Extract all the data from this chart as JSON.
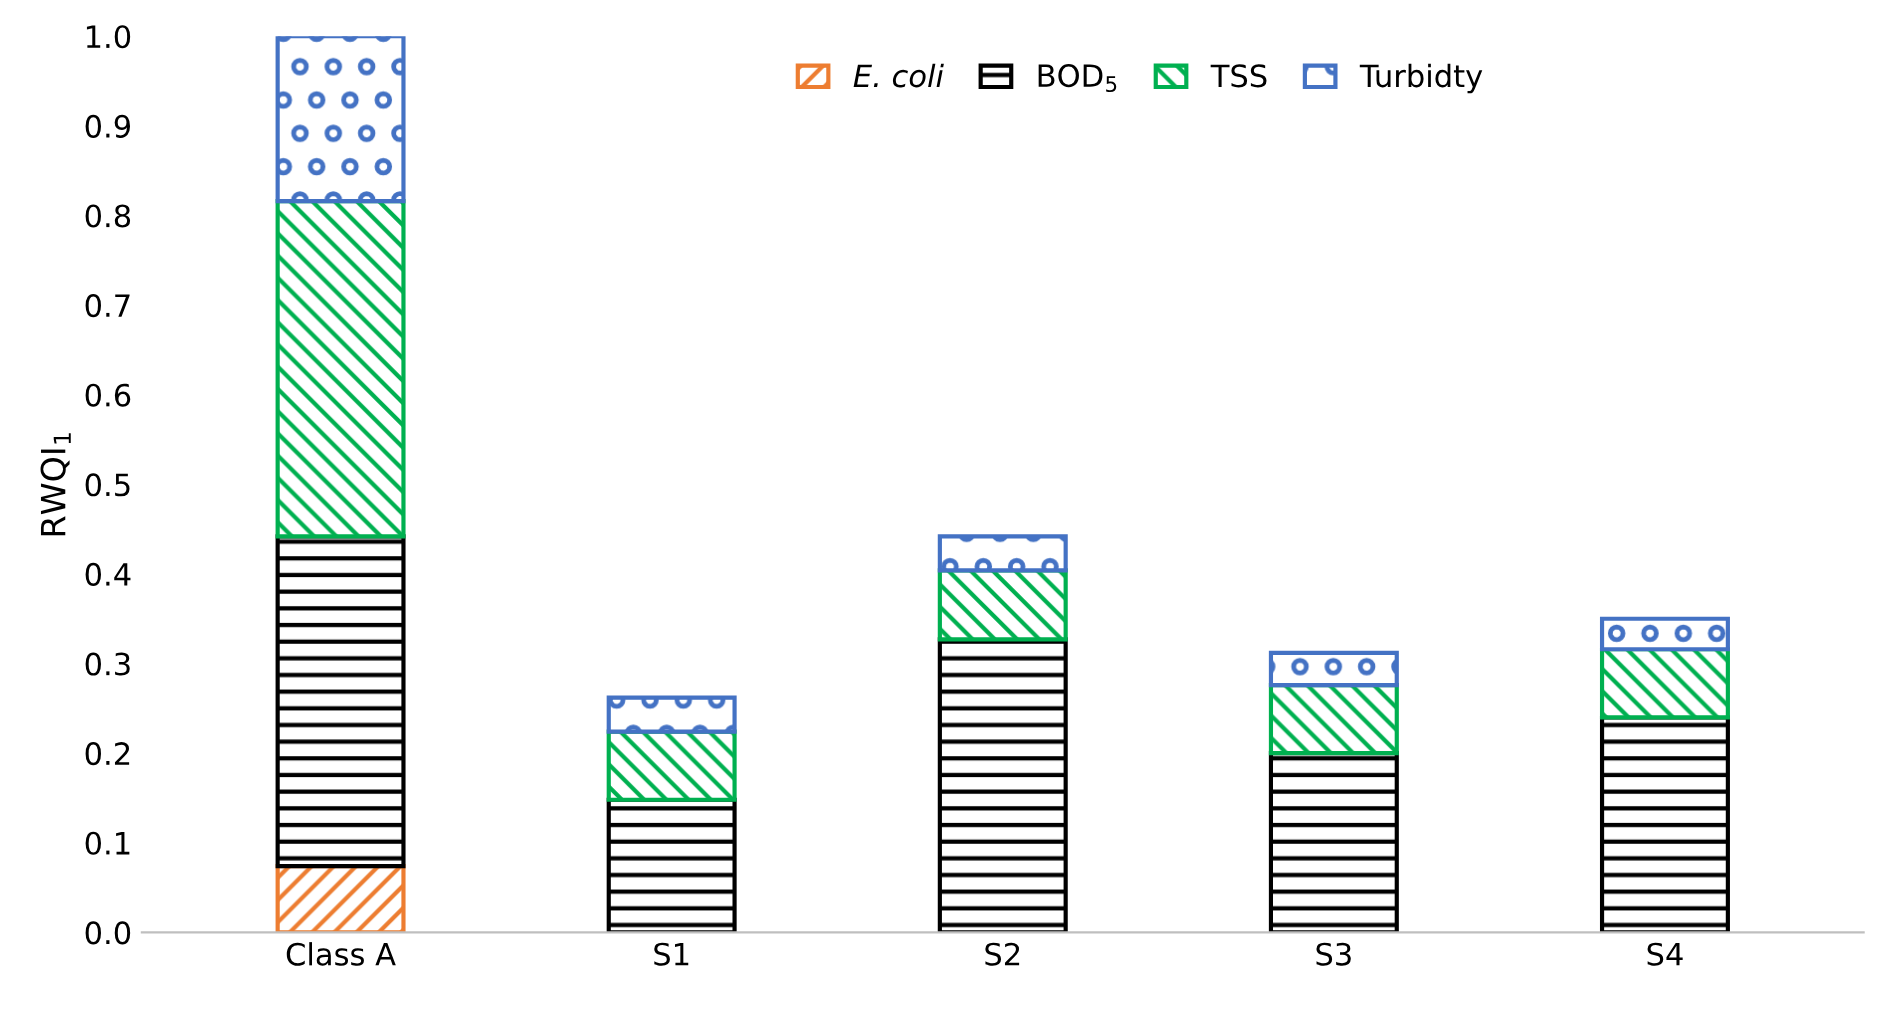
{
  "chart_data": {
    "type": "bar",
    "stacked": true,
    "ylabel": "RWQI$_{1}$",
    "categories": [
      "Class A",
      "S1",
      "S2",
      "S3",
      "S4"
    ],
    "series": [
      {
        "name": "E. coli",
        "color": "#ed7d31",
        "values": [
          0.074,
          0,
          0,
          0,
          0
        ]
      },
      {
        "name": "BOD$_{5}$",
        "color": "#000000",
        "values": [
          0.368,
          0.148,
          0.327,
          0.2,
          0.24
        ]
      },
      {
        "name": "TSS",
        "color": "#00b050",
        "values": [
          0.374,
          0.076,
          0.077,
          0.076,
          0.076
        ]
      },
      {
        "name": "Turbidty",
        "color": "#4472c4",
        "values": [
          0.184,
          0.038,
          0.038,
          0.036,
          0.034
        ]
      }
    ],
    "ylim": [
      0,
      1.0
    ],
    "yticks": [
      {
        "value": 0,
        "label": "0.0"
      },
      0.1,
      0.2,
      0.3,
      0.4,
      0.5,
      0.6,
      0.7,
      0.8,
      0.9,
      {
        "value": 1.0,
        "label": "1.0"
      }
    ],
    "grid": false,
    "legend": "top"
  }
}
